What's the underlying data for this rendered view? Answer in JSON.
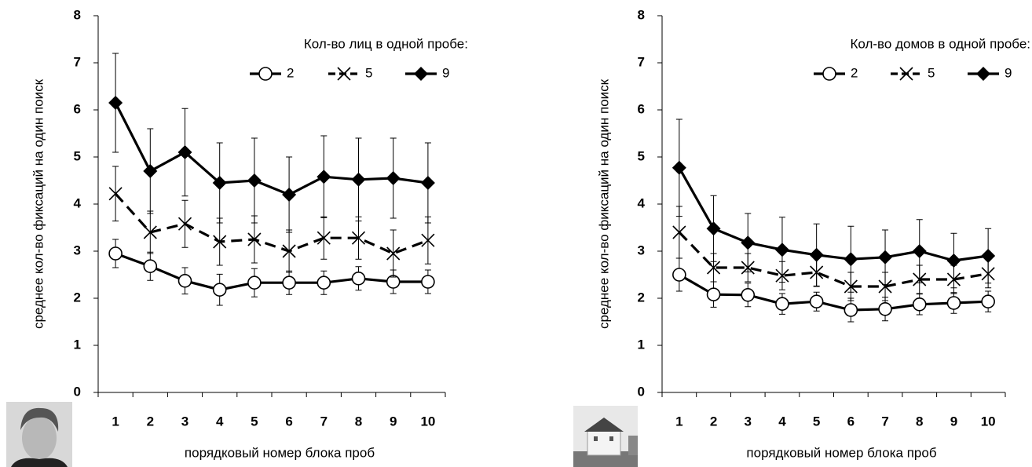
{
  "chart_data": [
    {
      "type": "line",
      "legend_title": "Кол-во лиц в одной пробе:",
      "xlabel": "порядковый номер блока проб",
      "ylabel": "среднее кол-во фиксаций на один поиск",
      "categories": [
        "1",
        "2",
        "3",
        "4",
        "5",
        "6",
        "7",
        "8",
        "9",
        "10"
      ],
      "ylim": [
        0,
        8
      ],
      "yticks": [
        0,
        1,
        2,
        3,
        4,
        5,
        6,
        7,
        8
      ],
      "series": [
        {
          "name": "2",
          "color": "#000000",
          "marker": "circle",
          "dashed": false,
          "values": [
            2.95,
            2.68,
            2.37,
            2.18,
            2.33,
            2.33,
            2.33,
            2.42,
            2.35,
            2.35
          ],
          "errors": [
            0.3,
            0.3,
            0.28,
            0.33,
            0.3,
            0.25,
            0.25,
            0.25,
            0.25,
            0.25
          ]
        },
        {
          "name": "5",
          "color": "#000000",
          "marker": "x",
          "dashed": true,
          "values": [
            4.22,
            3.4,
            3.58,
            3.2,
            3.25,
            3.0,
            3.28,
            3.28,
            2.95,
            3.23
          ],
          "errors": [
            0.58,
            0.45,
            0.5,
            0.5,
            0.5,
            0.45,
            0.45,
            0.45,
            0.5,
            0.5
          ]
        },
        {
          "name": "9",
          "color": "#000000",
          "marker": "diamond",
          "dashed": false,
          "values": [
            6.15,
            4.7,
            5.1,
            4.45,
            4.5,
            4.2,
            4.58,
            4.52,
            4.55,
            4.45
          ],
          "errors": [
            1.05,
            0.9,
            0.93,
            0.85,
            0.9,
            0.8,
            0.87,
            0.88,
            0.85,
            0.85
          ]
        }
      ]
    },
    {
      "type": "line",
      "legend_title": "Кол-во домов в одной пробе:",
      "xlabel": "порядковый номер блока проб",
      "ylabel": "среднее кол-во фиксаций на один поиск",
      "categories": [
        "1",
        "2",
        "3",
        "4",
        "5",
        "6",
        "7",
        "8",
        "9",
        "10"
      ],
      "ylim": [
        0,
        8
      ],
      "yticks": [
        0,
        1,
        2,
        3,
        4,
        5,
        6,
        7,
        8
      ],
      "series": [
        {
          "name": "2",
          "color": "#000000",
          "marker": "circle",
          "dashed": false,
          "values": [
            2.5,
            2.08,
            2.07,
            1.88,
            1.93,
            1.75,
            1.77,
            1.87,
            1.9,
            1.93
          ],
          "errors": [
            0.35,
            0.27,
            0.25,
            0.22,
            0.2,
            0.25,
            0.25,
            0.22,
            0.22,
            0.22
          ]
        },
        {
          "name": "5",
          "color": "#000000",
          "marker": "x",
          "dashed": true,
          "values": [
            3.4,
            2.65,
            2.65,
            2.48,
            2.55,
            2.25,
            2.25,
            2.4,
            2.4,
            2.52
          ],
          "errors": [
            0.55,
            0.3,
            0.3,
            0.3,
            0.3,
            0.3,
            0.3,
            0.3,
            0.3,
            0.3
          ]
        },
        {
          "name": "9",
          "color": "#000000",
          "marker": "diamond",
          "dashed": false,
          "values": [
            4.77,
            3.48,
            3.18,
            3.03,
            2.92,
            2.83,
            2.87,
            3.0,
            2.8,
            2.9
          ],
          "errors": [
            1.03,
            0.7,
            0.62,
            0.69,
            0.66,
            0.7,
            0.58,
            0.67,
            0.58,
            0.58
          ]
        }
      ]
    }
  ]
}
